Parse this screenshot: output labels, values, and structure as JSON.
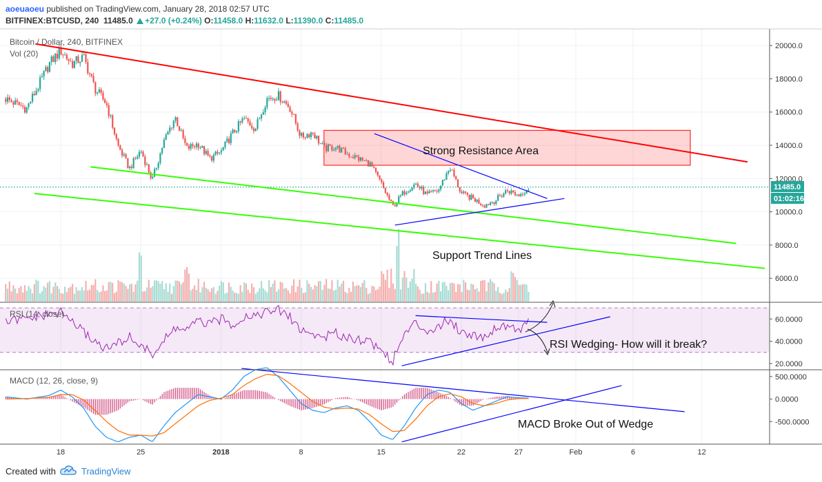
{
  "header": {
    "user": "aoeuaoeu",
    "published": "published on TradingView.com, January 28, 2018 02:57 UTC",
    "symbol": "BITFINEX:BTCUSD, 240",
    "last": "11485.0",
    "change": "+27.0 (+0.24%)",
    "o_label": "O:",
    "o": "11458.0",
    "h_label": "H:",
    "h": "11632.0",
    "l_label": "L:",
    "l": "11390.0",
    "c_label": "C:",
    "c": "11485.0"
  },
  "footer": {
    "created": "Created with",
    "brand": "TradingView"
  },
  "colors": {
    "up": "#26a69a",
    "down": "#ef5350",
    "resistance": "#ff0000",
    "support": "#33ff00",
    "wedge": "#0000ff",
    "rsi": "#9c27b0",
    "macd": "#2196f3",
    "signal": "#ff6d00"
  },
  "chart_data": [
    {
      "type": "candlestick",
      "title": "Bitcoin / Dollar, 240, BITFINEX",
      "indicator": "Vol (20)",
      "ylim": [
        4600,
        21000
      ],
      "yticks": [
        "20000.0",
        "18000.0",
        "16000.0",
        "14000.0",
        "12000.0",
        "10000.0",
        "8000.0",
        "6000.0"
      ],
      "ytick_values": [
        20000,
        18000,
        16000,
        14000,
        12000,
        10000,
        8000,
        6000
      ],
      "xticks": [
        "18",
        "25",
        "2018",
        "8",
        "15",
        "22",
        "27",
        "Feb",
        "6",
        "12"
      ],
      "xtick_days": [
        0,
        7,
        14,
        21,
        28,
        35,
        40,
        45,
        50,
        56
      ],
      "x_range_days": [
        -4.8,
        65
      ],
      "last_price_label": "11485.0",
      "countdown_label": "01:02:16",
      "last_price": 11485,
      "close_path": [
        [
          -4.8,
          16800
        ],
        [
          -3,
          16200
        ],
        [
          -2,
          17500
        ],
        [
          -1,
          18900
        ],
        [
          0,
          19700
        ],
        [
          1,
          18900
        ],
        [
          2,
          19300
        ],
        [
          3,
          17400
        ],
        [
          4,
          16500
        ],
        [
          5,
          14000
        ],
        [
          6,
          12600
        ],
        [
          7,
          13700
        ],
        [
          8,
          11900
        ],
        [
          9,
          14200
        ],
        [
          10,
          15700
        ],
        [
          11,
          13800
        ],
        [
          12,
          14100
        ],
        [
          13,
          13200
        ],
        [
          14,
          13600
        ],
        [
          15,
          14700
        ],
        [
          16,
          15600
        ],
        [
          17,
          15000
        ],
        [
          18,
          16800
        ],
        [
          19,
          17000
        ],
        [
          20,
          16300
        ],
        [
          21,
          14500
        ],
        [
          22,
          14800
        ],
        [
          23,
          13800
        ],
        [
          24,
          13900
        ],
        [
          25,
          13500
        ],
        [
          26,
          13200
        ],
        [
          27,
          12900
        ],
        [
          28,
          11700
        ],
        [
          29,
          10300
        ],
        [
          30,
          11200
        ],
        [
          31,
          11700
        ],
        [
          32,
          11000
        ],
        [
          33,
          11300
        ],
        [
          34,
          12700
        ],
        [
          35,
          11100
        ],
        [
          36,
          10800
        ],
        [
          37,
          10400
        ],
        [
          38,
          10700
        ],
        [
          39,
          11300
        ],
        [
          40,
          11000
        ],
        [
          41,
          11485
        ]
      ],
      "volume_spikes": [
        [
          7,
          0.55
        ],
        [
          11,
          0.35
        ],
        [
          29.5,
          0.48
        ],
        [
          39.5,
          0.32
        ]
      ],
      "annotations": [
        "Strong Resistance Area",
        "Support Trend Lines"
      ],
      "resistance_zone": [
        12800,
        14900
      ],
      "resistance_zone_days": [
        23,
        55
      ],
      "trend_lines": [
        {
          "name": "resistance",
          "color": "red",
          "points": [
            [
              -2.2,
              20100
            ],
            [
              60,
              13000
            ]
          ]
        },
        {
          "name": "support-upper",
          "color": "green",
          "points": [
            [
              2.6,
              12700
            ],
            [
              59,
              8100
            ]
          ]
        },
        {
          "name": "support-lower",
          "color": "green",
          "points": [
            [
              -2.3,
              11100
            ],
            [
              61.5,
              6600
            ]
          ]
        },
        {
          "name": "wedge-upper",
          "color": "blue",
          "points": [
            [
              27.4,
              14700
            ],
            [
              42.5,
              10800
            ]
          ]
        },
        {
          "name": "wedge-lower",
          "color": "blue",
          "points": [
            [
              29.2,
              9200
            ],
            [
              44,
              10800
            ]
          ]
        }
      ]
    },
    {
      "type": "line",
      "title": "RSI (14, close)",
      "ylim": [
        15,
        75
      ],
      "yticks": [
        "60.0000",
        "40.0000",
        "20.0000"
      ],
      "ytick_values": [
        60,
        40,
        20
      ],
      "band": [
        30,
        70
      ],
      "path": [
        [
          -4.8,
          57
        ],
        [
          -3,
          60
        ],
        [
          -1,
          64
        ],
        [
          0,
          66
        ],
        [
          1,
          58
        ],
        [
          2,
          48
        ],
        [
          3,
          40
        ],
        [
          4,
          33
        ],
        [
          5,
          38
        ],
        [
          6,
          44
        ],
        [
          7,
          36
        ],
        [
          8,
          28
        ],
        [
          9,
          40
        ],
        [
          10,
          52
        ],
        [
          11,
          50
        ],
        [
          12,
          58
        ],
        [
          13,
          55
        ],
        [
          14,
          60
        ],
        [
          15,
          55
        ],
        [
          16,
          62
        ],
        [
          17,
          64
        ],
        [
          18,
          66
        ],
        [
          19,
          68
        ],
        [
          20,
          62
        ],
        [
          21,
          50
        ],
        [
          22,
          46
        ],
        [
          23,
          44
        ],
        [
          24,
          47
        ],
        [
          25,
          44
        ],
        [
          26,
          42
        ],
        [
          27,
          40
        ],
        [
          28,
          32
        ],
        [
          29,
          22
        ],
        [
          30,
          46
        ],
        [
          31,
          56
        ],
        [
          32,
          50
        ],
        [
          33,
          53
        ],
        [
          34,
          60
        ],
        [
          35,
          48
        ],
        [
          36,
          46
        ],
        [
          37,
          44
        ],
        [
          38,
          52
        ],
        [
          39,
          55
        ],
        [
          40,
          50
        ],
        [
          41,
          58
        ]
      ],
      "annotation": "RSI Wedging- How will it break?",
      "trend_lines": [
        [
          [
            31,
            63
          ],
          [
            42.5,
            57
          ]
        ],
        [
          [
            29.8,
            18
          ],
          [
            48,
            62
          ]
        ]
      ]
    },
    {
      "type": "line+histogram",
      "title": "MACD (12, 26, close, 9)",
      "ylim": [
        -1000,
        650
      ],
      "yticks": [
        "500.0000",
        "0.0000",
        "-500.0000"
      ],
      "ytick_values": [
        500,
        0,
        -500
      ],
      "macd": [
        [
          -4.8,
          50
        ],
        [
          -3,
          0
        ],
        [
          -1,
          80
        ],
        [
          0,
          200
        ],
        [
          1,
          50
        ],
        [
          2,
          -200
        ],
        [
          3,
          -600
        ],
        [
          4,
          -850
        ],
        [
          5,
          -950
        ],
        [
          6,
          -850
        ],
        [
          7,
          -800
        ],
        [
          8,
          -950
        ],
        [
          9,
          -600
        ],
        [
          10,
          -300
        ],
        [
          11,
          -100
        ],
        [
          12,
          100
        ],
        [
          13,
          50
        ],
        [
          14,
          0
        ],
        [
          15,
          200
        ],
        [
          16,
          500
        ],
        [
          17,
          650
        ],
        [
          18,
          700
        ],
        [
          19,
          500
        ],
        [
          20,
          200
        ],
        [
          21,
          -100
        ],
        [
          22,
          -250
        ],
        [
          23,
          -300
        ],
        [
          24,
          -200
        ],
        [
          25,
          -150
        ],
        [
          26,
          -250
        ],
        [
          27,
          -500
        ],
        [
          28,
          -800
        ],
        [
          29,
          -900
        ],
        [
          30,
          -600
        ],
        [
          31,
          -200
        ],
        [
          32,
          100
        ],
        [
          33,
          200
        ],
        [
          34,
          150
        ],
        [
          35,
          -100
        ],
        [
          36,
          -250
        ],
        [
          37,
          -150
        ],
        [
          38,
          -50
        ],
        [
          39,
          50
        ],
        [
          40,
          30
        ],
        [
          41,
          20
        ]
      ],
      "signal": [
        [
          -4.8,
          0
        ],
        [
          -3,
          10
        ],
        [
          -1,
          40
        ],
        [
          0,
          100
        ],
        [
          1,
          100
        ],
        [
          2,
          -20
        ],
        [
          3,
          -250
        ],
        [
          4,
          -500
        ],
        [
          5,
          -700
        ],
        [
          6,
          -800
        ],
        [
          7,
          -800
        ],
        [
          8,
          -820
        ],
        [
          9,
          -750
        ],
        [
          10,
          -550
        ],
        [
          11,
          -350
        ],
        [
          12,
          -150
        ],
        [
          13,
          -30
        ],
        [
          14,
          20
        ],
        [
          15,
          100
        ],
        [
          16,
          300
        ],
        [
          17,
          450
        ],
        [
          18,
          550
        ],
        [
          19,
          520
        ],
        [
          20,
          350
        ],
        [
          21,
          150
        ],
        [
          22,
          -50
        ],
        [
          23,
          -180
        ],
        [
          24,
          -220
        ],
        [
          25,
          -200
        ],
        [
          26,
          -220
        ],
        [
          27,
          -350
        ],
        [
          28,
          -550
        ],
        [
          29,
          -720
        ],
        [
          30,
          -700
        ],
        [
          31,
          -450
        ],
        [
          32,
          -150
        ],
        [
          33,
          50
        ],
        [
          34,
          120
        ],
        [
          35,
          50
        ],
        [
          36,
          -100
        ],
        [
          37,
          -150
        ],
        [
          38,
          -100
        ],
        [
          39,
          -20
        ],
        [
          40,
          10
        ],
        [
          41,
          15
        ]
      ],
      "annotation": "MACD Broke Out of Wedge",
      "trend_lines": [
        [
          [
            15.8,
            680
          ],
          [
            54.5,
            -280
          ]
        ],
        [
          [
            29.8,
            -950
          ],
          [
            49,
            300
          ]
        ]
      ]
    }
  ]
}
